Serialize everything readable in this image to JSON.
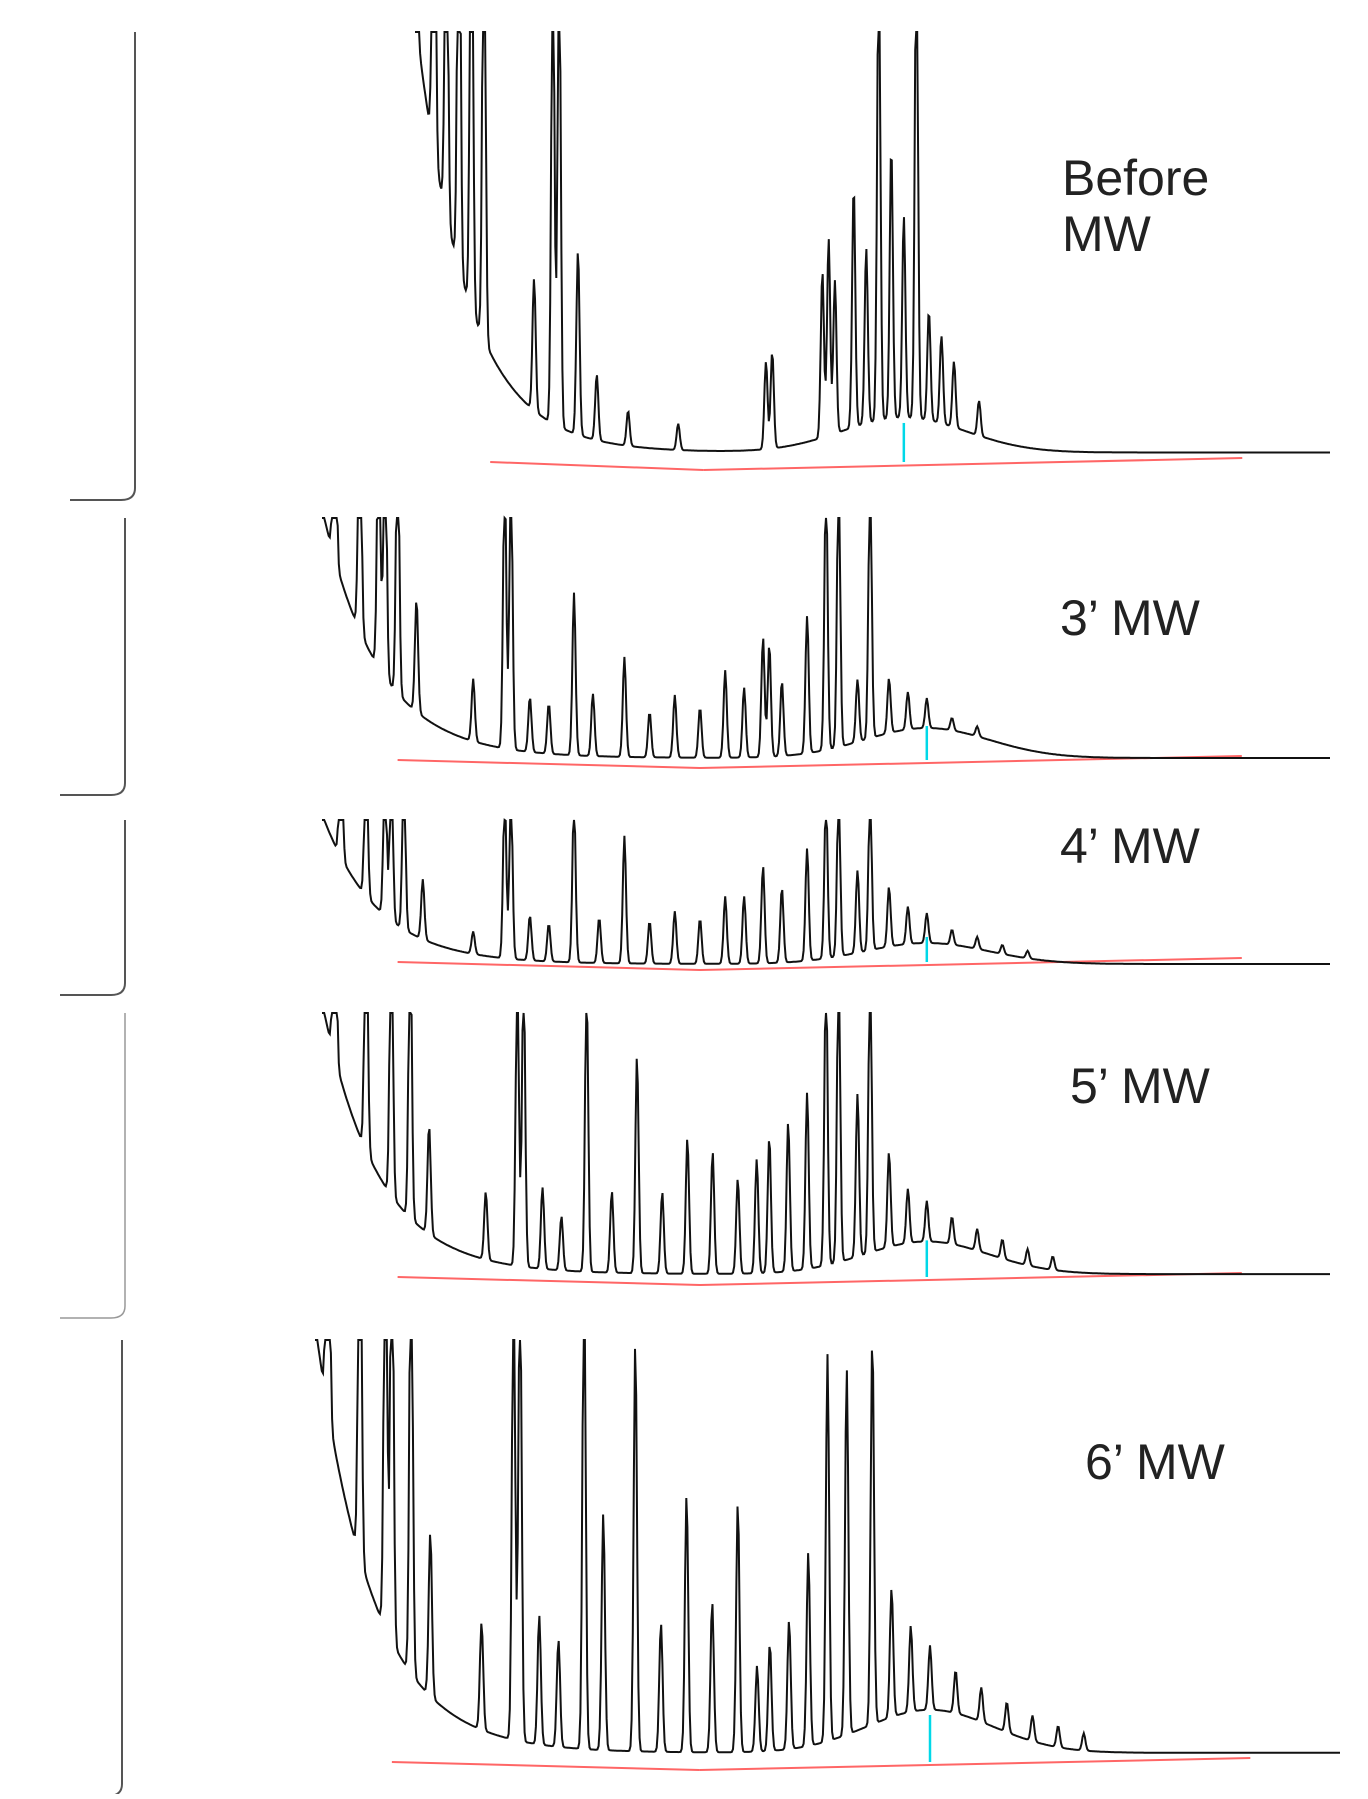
{
  "chart_data": {
    "type": "line",
    "title": "",
    "xlabel": "",
    "ylabel": "",
    "grid": false,
    "axes": "none",
    "panels": [
      {
        "label_lines": [
          "Before",
          "MW"
        ],
        "detector_tail": true,
        "start": 0.27,
        "solvent_height": 1.0,
        "hump": {
          "center": 0.66,
          "height": 0.08
        },
        "peaks": [
          [
            0.27,
            1.1
          ],
          [
            0.285,
            1.1
          ],
          [
            0.295,
            0.9
          ],
          [
            0.305,
            1.1
          ],
          [
            0.315,
            1.1
          ],
          [
            0.325,
            1.1
          ],
          [
            0.365,
            0.3
          ],
          [
            0.38,
            1.1
          ],
          [
            0.385,
            1.1
          ],
          [
            0.4,
            0.42
          ],
          [
            0.415,
            0.15
          ],
          [
            0.44,
            0.08
          ],
          [
            0.48,
            0.06
          ],
          [
            0.55,
            0.2
          ],
          [
            0.555,
            0.22
          ],
          [
            0.595,
            0.38
          ],
          [
            0.6,
            0.45
          ],
          [
            0.605,
            0.35
          ],
          [
            0.62,
            0.55
          ],
          [
            0.63,
            0.4
          ],
          [
            0.64,
            1.1
          ],
          [
            0.65,
            0.62
          ],
          [
            0.66,
            0.46
          ],
          [
            0.67,
            1.1
          ],
          [
            0.68,
            0.25
          ],
          [
            0.69,
            0.2
          ],
          [
            0.7,
            0.15
          ],
          [
            0.72,
            0.08
          ]
        ]
      },
      {
        "label_lines": [
          "3’ MW"
        ],
        "detector_tail": true,
        "start": 0.2,
        "solvent_height": 1.0,
        "hump": {
          "center": 0.68,
          "height": 0.12
        },
        "peaks": [
          [
            0.21,
            1.1
          ],
          [
            0.23,
            1.1
          ],
          [
            0.245,
            1.1
          ],
          [
            0.25,
            1.1
          ],
          [
            0.26,
            1.1
          ],
          [
            0.275,
            0.45
          ],
          [
            0.32,
            0.25
          ],
          [
            0.345,
            1.1
          ],
          [
            0.35,
            1.1
          ],
          [
            0.365,
            0.22
          ],
          [
            0.38,
            0.2
          ],
          [
            0.4,
            0.65
          ],
          [
            0.415,
            0.25
          ],
          [
            0.44,
            0.4
          ],
          [
            0.46,
            0.18
          ],
          [
            0.48,
            0.25
          ],
          [
            0.5,
            0.2
          ],
          [
            0.52,
            0.35
          ],
          [
            0.535,
            0.28
          ],
          [
            0.55,
            0.48
          ],
          [
            0.555,
            0.45
          ],
          [
            0.565,
            0.3
          ],
          [
            0.585,
            0.55
          ],
          [
            0.6,
            1.1
          ],
          [
            0.61,
            1.1
          ],
          [
            0.625,
            0.25
          ],
          [
            0.635,
            1.1
          ],
          [
            0.65,
            0.22
          ],
          [
            0.665,
            0.15
          ],
          [
            0.68,
            0.12
          ],
          [
            0.7,
            0.05
          ],
          [
            0.72,
            0.04
          ]
        ]
      },
      {
        "label_lines": [
          "4’ MW"
        ],
        "detector_tail": true,
        "start": 0.2,
        "solvent_height": 1.0,
        "hump": {
          "center": 0.68,
          "height": 0.14
        },
        "peaks": [
          [
            0.215,
            1.1
          ],
          [
            0.235,
            1.1
          ],
          [
            0.25,
            1.1
          ],
          [
            0.255,
            1.1
          ],
          [
            0.265,
            1.1
          ],
          [
            0.28,
            0.4
          ],
          [
            0.32,
            0.15
          ],
          [
            0.345,
            1.1
          ],
          [
            0.35,
            1.1
          ],
          [
            0.365,
            0.3
          ],
          [
            0.38,
            0.25
          ],
          [
            0.4,
            1.1
          ],
          [
            0.42,
            0.3
          ],
          [
            0.44,
            0.85
          ],
          [
            0.46,
            0.28
          ],
          [
            0.48,
            0.35
          ],
          [
            0.5,
            0.3
          ],
          [
            0.52,
            0.45
          ],
          [
            0.535,
            0.45
          ],
          [
            0.55,
            0.65
          ],
          [
            0.565,
            0.5
          ],
          [
            0.585,
            0.75
          ],
          [
            0.6,
            1.1
          ],
          [
            0.61,
            1.1
          ],
          [
            0.625,
            0.55
          ],
          [
            0.635,
            1.1
          ],
          [
            0.65,
            0.4
          ],
          [
            0.665,
            0.25
          ],
          [
            0.68,
            0.2
          ],
          [
            0.7,
            0.1
          ],
          [
            0.72,
            0.08
          ],
          [
            0.74,
            0.06
          ],
          [
            0.76,
            0.05
          ]
        ]
      },
      {
        "label_lines": [
          "5’ MW"
        ],
        "detector_tail": false,
        "start": 0.2,
        "solvent_height": 1.0,
        "hump": {
          "center": 0.68,
          "height": 0.12
        },
        "peaks": [
          [
            0.21,
            1.1
          ],
          [
            0.235,
            1.1
          ],
          [
            0.255,
            1.1
          ],
          [
            0.27,
            1.1
          ],
          [
            0.285,
            0.4
          ],
          [
            0.33,
            0.25
          ],
          [
            0.355,
            1.1
          ],
          [
            0.36,
            1.1
          ],
          [
            0.375,
            0.3
          ],
          [
            0.39,
            0.2
          ],
          [
            0.41,
            1.05
          ],
          [
            0.43,
            0.3
          ],
          [
            0.45,
            0.8
          ],
          [
            0.47,
            0.3
          ],
          [
            0.49,
            0.5
          ],
          [
            0.51,
            0.45
          ],
          [
            0.53,
            0.35
          ],
          [
            0.545,
            0.42
          ],
          [
            0.555,
            0.5
          ],
          [
            0.57,
            0.55
          ],
          [
            0.585,
            0.65
          ],
          [
            0.6,
            1.1
          ],
          [
            0.61,
            1.1
          ],
          [
            0.625,
            0.6
          ],
          [
            0.635,
            1.1
          ],
          [
            0.65,
            0.35
          ],
          [
            0.665,
            0.2
          ],
          [
            0.68,
            0.15
          ],
          [
            0.7,
            0.1
          ],
          [
            0.72,
            0.08
          ],
          [
            0.74,
            0.07
          ],
          [
            0.76,
            0.06
          ],
          [
            0.78,
            0.05
          ]
        ]
      },
      {
        "label_lines": [
          "6’ MW"
        ],
        "detector_tail": true,
        "start": 0.2,
        "solvent_height": 1.0,
        "hump": {
          "center": 0.68,
          "height": 0.1
        },
        "peaks": [
          [
            0.21,
            1.1
          ],
          [
            0.235,
            1.1
          ],
          [
            0.255,
            1.1
          ],
          [
            0.26,
            1.1
          ],
          [
            0.275,
            1.1
          ],
          [
            0.29,
            0.38
          ],
          [
            0.33,
            0.25
          ],
          [
            0.355,
            1.1
          ],
          [
            0.36,
            1.1
          ],
          [
            0.375,
            0.3
          ],
          [
            0.39,
            0.25
          ],
          [
            0.41,
            1.1
          ],
          [
            0.425,
            0.55
          ],
          [
            0.45,
            0.95
          ],
          [
            0.47,
            0.3
          ],
          [
            0.49,
            0.6
          ],
          [
            0.51,
            0.35
          ],
          [
            0.53,
            0.58
          ],
          [
            0.545,
            0.2
          ],
          [
            0.555,
            0.25
          ],
          [
            0.57,
            0.3
          ],
          [
            0.585,
            0.45
          ],
          [
            0.6,
            0.9
          ],
          [
            0.615,
            0.85
          ],
          [
            0.635,
            0.9
          ],
          [
            0.65,
            0.3
          ],
          [
            0.665,
            0.2
          ],
          [
            0.68,
            0.15
          ],
          [
            0.7,
            0.1
          ],
          [
            0.72,
            0.08
          ],
          [
            0.74,
            0.07
          ],
          [
            0.76,
            0.06
          ],
          [
            0.78,
            0.05
          ],
          [
            0.8,
            0.04
          ]
        ]
      }
    ]
  }
}
